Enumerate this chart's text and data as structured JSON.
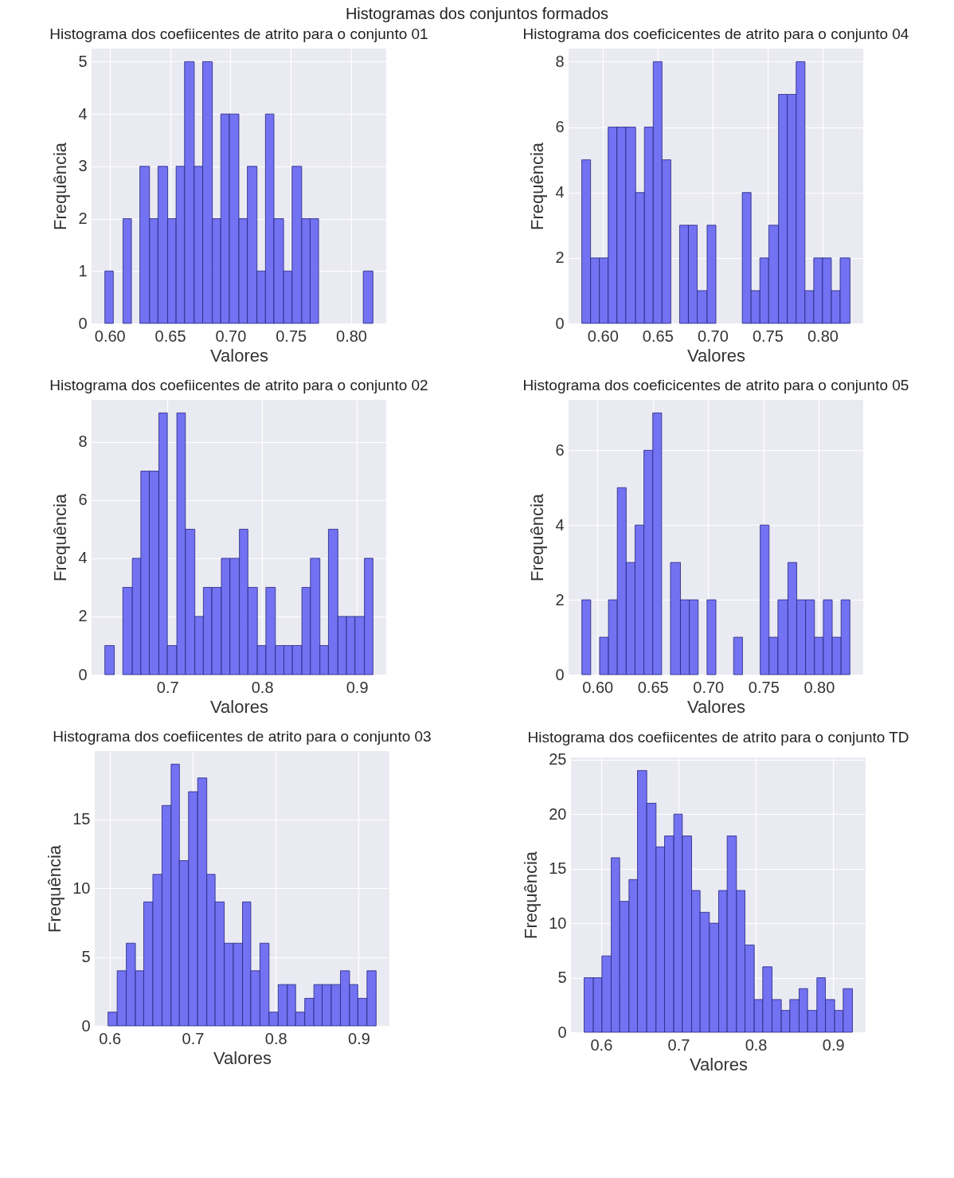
{
  "chart_data": [
    {
      "type": "histogram",
      "title": "Histograma dos coefiicentes de atrito para o conjunto 01",
      "xlabel": "Valores",
      "ylabel": "Frequência",
      "annotations": [
        "Histogramas dos conjuntos formados"
      ],
      "color": "#7272f2",
      "grid": true,
      "bins": [
        0.596,
        0.603,
        0.611,
        0.618,
        0.625,
        0.633,
        0.64,
        0.648,
        0.655,
        0.662,
        0.67,
        0.677,
        0.685,
        0.692,
        0.699,
        0.707,
        0.714,
        0.722,
        0.729,
        0.736,
        0.744,
        0.751,
        0.759,
        0.766,
        0.773,
        0.81,
        0.818
      ],
      "values": [
        1,
        0,
        2,
        0,
        3,
        2,
        3,
        2,
        3,
        5,
        3,
        5,
        2,
        4,
        4,
        2,
        3,
        1,
        4,
        2,
        1,
        3,
        2,
        2,
        0,
        1
      ],
      "xlim": [
        0.585,
        0.829
      ],
      "ylim": [
        0,
        5.25
      ],
      "xticks": [
        {
          "value": 0.6,
          "label": "0.60"
        },
        {
          "value": 0.65,
          "label": "0.65"
        },
        {
          "value": 0.7,
          "label": "0.70"
        },
        {
          "value": 0.75,
          "label": "0.75"
        },
        {
          "value": 0.8,
          "label": "0.80"
        }
      ],
      "yticks": [
        0,
        1,
        2,
        3,
        4,
        5
      ]
    },
    {
      "type": "histogram",
      "title": "Histograma dos coeficicentes de atrito para o conjunto 04",
      "xlabel": "Valores",
      "ylabel": "Frequência",
      "color": "#7272f2",
      "grid": true,
      "bins": [
        0.581,
        0.589,
        0.597,
        0.605,
        0.613,
        0.621,
        0.63,
        0.638,
        0.646,
        0.654,
        0.662,
        0.67,
        0.678,
        0.686,
        0.695,
        0.703,
        0.727,
        0.735,
        0.743,
        0.751,
        0.76,
        0.768,
        0.776,
        0.784,
        0.792,
        0.8,
        0.808,
        0.816,
        0.825
      ],
      "values": [
        5,
        2,
        2,
        6,
        6,
        6,
        4,
        6,
        8,
        5,
        0,
        3,
        3,
        1,
        3,
        0,
        4,
        1,
        2,
        3,
        7,
        7,
        8,
        1,
        2,
        2,
        1,
        2
      ],
      "xlim": [
        0.569,
        0.837
      ],
      "ylim": [
        0,
        8.4
      ],
      "xticks": [
        {
          "value": 0.6,
          "label": "0.60"
        },
        {
          "value": 0.65,
          "label": "0.65"
        },
        {
          "value": 0.7,
          "label": "0.70"
        },
        {
          "value": 0.75,
          "label": "0.75"
        },
        {
          "value": 0.8,
          "label": "0.80"
        }
      ],
      "yticks": [
        0,
        2,
        4,
        6,
        8
      ]
    },
    {
      "type": "histogram",
      "title": "Histograma dos coefiicentes de atrito para o conjunto 02",
      "xlabel": "Valores",
      "ylabel": "Frequência",
      "color": "#7272f2",
      "grid": true,
      "bins": [
        0.634,
        0.644,
        0.653,
        0.663,
        0.672,
        0.681,
        0.691,
        0.7,
        0.71,
        0.719,
        0.729,
        0.738,
        0.747,
        0.757,
        0.766,
        0.776,
        0.785,
        0.795,
        0.804,
        0.814,
        0.823,
        0.832,
        0.842,
        0.851,
        0.861,
        0.87,
        0.88,
        0.889,
        0.898,
        0.908,
        0.917
      ],
      "values": [
        1,
        0,
        3,
        4,
        7,
        7,
        9,
        1,
        9,
        5,
        2,
        3,
        3,
        4,
        4,
        5,
        3,
        1,
        3,
        1,
        1,
        1,
        3,
        4,
        1,
        5,
        2,
        2,
        2,
        4
      ],
      "xlim": [
        0.62,
        0.931
      ],
      "ylim": [
        0,
        9.45
      ],
      "xticks": [
        0.7,
        0.8,
        0.9
      ],
      "yticks": [
        0,
        2,
        4,
        6,
        8
      ]
    },
    {
      "type": "histogram",
      "title": "Histograma dos coeficicentes de atrito para o conjunto 05",
      "xlabel": "Valores",
      "ylabel": "Frequência",
      "color": "#7272f2",
      "grid": true,
      "bins": [
        0.586,
        0.594,
        0.602,
        0.61,
        0.618,
        0.626,
        0.634,
        0.642,
        0.65,
        0.658,
        0.666,
        0.675,
        0.683,
        0.691,
        0.699,
        0.707,
        0.723,
        0.731,
        0.747,
        0.755,
        0.763,
        0.772,
        0.78,
        0.788,
        0.796,
        0.804,
        0.812,
        0.82,
        0.828
      ],
      "values": [
        2,
        0,
        1,
        2,
        5,
        3,
        4,
        6,
        7,
        0,
        3,
        2,
        2,
        0,
        2,
        0,
        1,
        0,
        4,
        1,
        2,
        3,
        2,
        2,
        1,
        2,
        1,
        2
      ],
      "xlim": [
        0.574,
        0.84
      ],
      "ylim": [
        0,
        7.35
      ],
      "xticks": [
        {
          "value": 0.6,
          "label": "0.60"
        },
        {
          "value": 0.65,
          "label": "0.65"
        },
        {
          "value": 0.7,
          "label": "0.70"
        },
        {
          "value": 0.75,
          "label": "0.75"
        },
        {
          "value": 0.8,
          "label": "0.80"
        }
      ],
      "yticks": [
        0,
        2,
        4,
        6
      ]
    },
    {
      "type": "histogram",
      "title": "Histograma dos coefiicentes de atrito para o conjunto 03",
      "xlabel": "Valores",
      "ylabel": "Frequência",
      "color": "#7272f2",
      "grid": true,
      "bins": [
        0.598,
        0.609,
        0.62,
        0.631,
        0.641,
        0.652,
        0.663,
        0.674,
        0.684,
        0.695,
        0.706,
        0.717,
        0.727,
        0.738,
        0.749,
        0.76,
        0.77,
        0.781,
        0.792,
        0.803,
        0.814,
        0.824,
        0.835,
        0.846,
        0.856,
        0.867,
        0.878,
        0.889,
        0.899,
        0.91,
        0.921
      ],
      "values": [
        1,
        4,
        6,
        4,
        9,
        11,
        16,
        19,
        12,
        17,
        18,
        11,
        9,
        6,
        6,
        9,
        4,
        6,
        1,
        3,
        3,
        1,
        2,
        3,
        3,
        3,
        4,
        3,
        2,
        4
      ],
      "xlim": [
        0.582,
        0.937
      ],
      "ylim": [
        0,
        19.95
      ],
      "xticks": [
        0.6,
        0.7,
        0.8,
        0.9
      ],
      "yticks": [
        0,
        5,
        10,
        15
      ]
    },
    {
      "type": "histogram",
      "title": "Histograma dos coefiicentes de atrito para o conjunto TD",
      "xlabel": "Valores",
      "ylabel": "Frequência",
      "color": "#7272f2",
      "grid": true,
      "bins": [
        0.578,
        0.59,
        0.601,
        0.613,
        0.624,
        0.636,
        0.647,
        0.659,
        0.671,
        0.682,
        0.694,
        0.705,
        0.717,
        0.728,
        0.74,
        0.752,
        0.763,
        0.775,
        0.786,
        0.798,
        0.809,
        0.821,
        0.833,
        0.844,
        0.856,
        0.867,
        0.879,
        0.89,
        0.902,
        0.913,
        0.925
      ],
      "values": [
        5,
        5,
        7,
        16,
        12,
        14,
        24,
        21,
        17,
        18,
        20,
        18,
        13,
        11,
        10,
        13,
        18,
        13,
        8,
        3,
        6,
        3,
        2,
        3,
        4,
        2,
        5,
        3,
        2,
        4
      ],
      "xlim": [
        0.561,
        0.942
      ],
      "ylim": [
        0,
        25.2
      ],
      "xticks": [
        0.6,
        0.7,
        0.8,
        0.9
      ],
      "yticks": [
        0,
        5,
        10,
        15,
        20,
        25
      ]
    }
  ]
}
